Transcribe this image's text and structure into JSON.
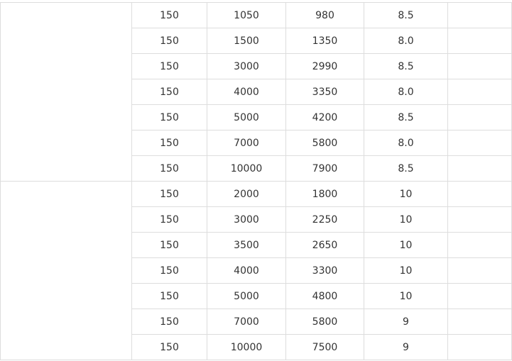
{
  "groups": [
    {
      "label": "",
      "rows": [
        [
          "150",
          "1050",
          "980",
          "8.5",
          ""
        ],
        [
          "150",
          "1500",
          "1350",
          "8.0",
          ""
        ],
        [
          "150",
          "3000",
          "2990",
          "8.5",
          ""
        ],
        [
          "150",
          "4000",
          "3350",
          "8.0",
          ""
        ],
        [
          "150",
          "5000",
          "4200",
          "8.5",
          ""
        ],
        [
          "150",
          "7000",
          "5800",
          "8.0",
          ""
        ],
        [
          "150",
          "10000",
          "7900",
          "8.5",
          ""
        ]
      ]
    },
    {
      "label": "",
      "rows": [
        [
          "150",
          "2000",
          "1800",
          "10",
          ""
        ],
        [
          "150",
          "3000",
          "2250",
          "10",
          ""
        ],
        [
          "150",
          "3500",
          "2650",
          "10",
          ""
        ],
        [
          "150",
          "4000",
          "3300",
          "10",
          ""
        ],
        [
          "150",
          "5000",
          "4800",
          "10",
          ""
        ],
        [
          "150",
          "7000",
          "5800",
          "9",
          ""
        ],
        [
          "150",
          "10000",
          "7500",
          "9",
          ""
        ]
      ]
    }
  ]
}
